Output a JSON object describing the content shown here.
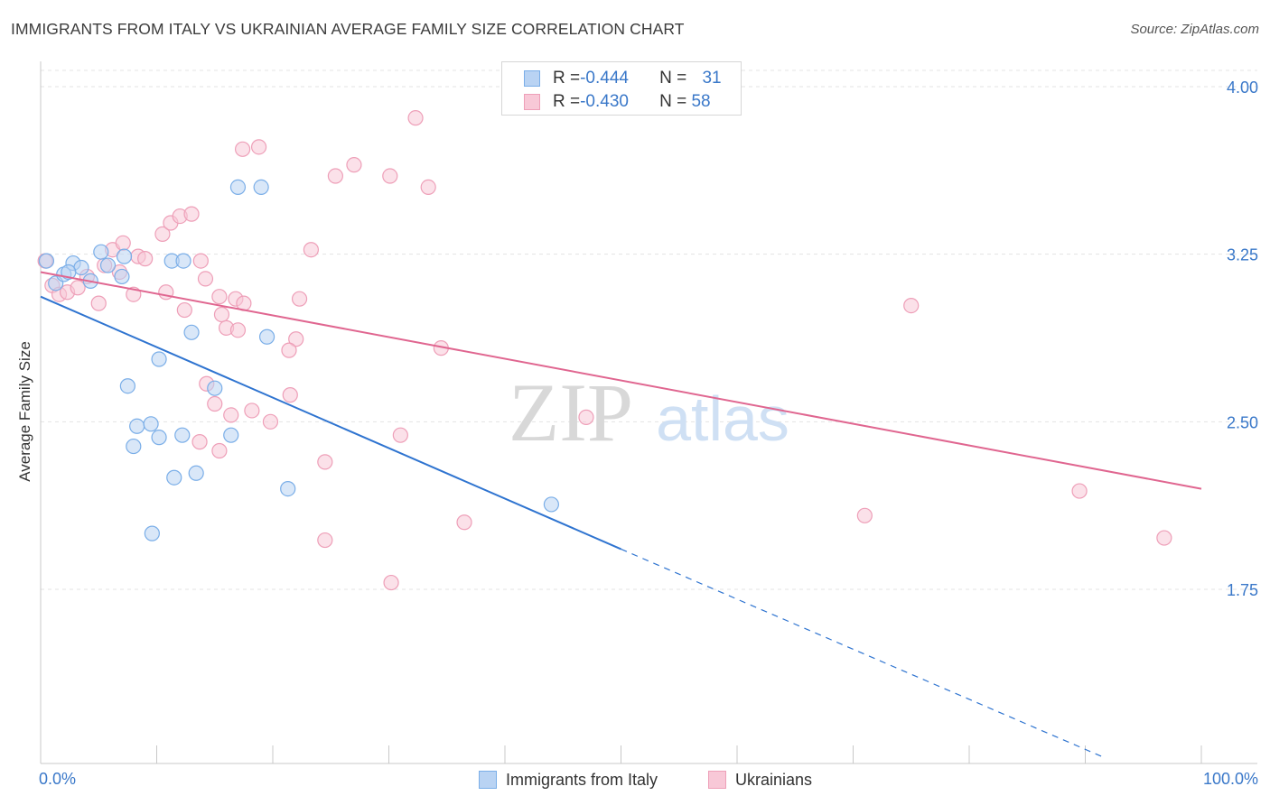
{
  "title": "IMMIGRANTS FROM ITALY VS UKRAINIAN AVERAGE FAMILY SIZE CORRELATION CHART",
  "source": "Source: ZipAtlas.com",
  "watermark": {
    "zip": "ZIP",
    "atlas": "atlas"
  },
  "legend": {
    "rows": [
      {
        "r_label": "R = ",
        "r_value": "-0.444",
        "n_label": "N = ",
        "n_value": "31"
      },
      {
        "r_label": "R = ",
        "r_value": "-0.430",
        "n_label": "N = ",
        "n_value": "58"
      }
    ]
  },
  "chart_data": {
    "type": "scatter",
    "title": "IMMIGRANTS FROM ITALY VS UKRAINIAN AVERAGE FAMILY SIZE CORRELATION CHART",
    "xlabel": "",
    "ylabel": "Average Family Size",
    "xlim": [
      0,
      100
    ],
    "ylim": [
      1.0,
      4.2
    ],
    "x_tick_labels": [
      "0.0%",
      "100.0%"
    ],
    "y_ticks": [
      1.75,
      2.5,
      3.25,
      4.0
    ],
    "y_tick_labels": [
      "1.75",
      "2.50",
      "3.25",
      "4.00"
    ],
    "grid": true,
    "legend_position": "bottom",
    "series": [
      {
        "name": "Immigrants from Italy",
        "color": "#7aaee8",
        "fill": "#b9d3f3",
        "trend_color": "#2f74d0",
        "trend": {
          "x0": 0,
          "y0": 3.06,
          "x1": 50,
          "y1": 1.93,
          "dash_to_x": 91.5,
          "dash_to_y": 1.0
        },
        "points": [
          [
            0.5,
            3.22
          ],
          [
            1.3,
            3.12
          ],
          [
            2.0,
            3.16
          ],
          [
            2.8,
            3.21
          ],
          [
            3.5,
            3.19
          ],
          [
            2.4,
            3.17
          ],
          [
            5.2,
            3.26
          ],
          [
            5.8,
            3.2
          ],
          [
            7.2,
            3.24
          ],
          [
            4.3,
            3.13
          ],
          [
            7.0,
            3.15
          ],
          [
            11.3,
            3.22
          ],
          [
            12.3,
            3.22
          ],
          [
            17.0,
            3.55
          ],
          [
            19.0,
            3.55
          ],
          [
            10.2,
            2.78
          ],
          [
            13.0,
            2.9
          ],
          [
            19.5,
            2.88
          ],
          [
            7.5,
            2.66
          ],
          [
            15.0,
            2.65
          ],
          [
            8.3,
            2.48
          ],
          [
            10.2,
            2.43
          ],
          [
            12.2,
            2.44
          ],
          [
            8.0,
            2.39
          ],
          [
            9.5,
            2.49
          ],
          [
            11.5,
            2.25
          ],
          [
            13.4,
            2.27
          ],
          [
            21.3,
            2.2
          ],
          [
            16.4,
            2.44
          ],
          [
            9.6,
            2.0
          ],
          [
            44.0,
            2.13
          ]
        ]
      },
      {
        "name": "Ukrainians",
        "color": "#ee9fb8",
        "fill": "#f8c8d7",
        "trend_color": "#e06690",
        "trend": {
          "x0": 0,
          "y0": 3.17,
          "x1": 100,
          "y1": 2.2
        },
        "points": [
          [
            0.4,
            3.22
          ],
          [
            1.0,
            3.11
          ],
          [
            1.6,
            3.07
          ],
          [
            2.3,
            3.08
          ],
          [
            3.2,
            3.1
          ],
          [
            4.0,
            3.15
          ],
          [
            5.5,
            3.2
          ],
          [
            6.2,
            3.27
          ],
          [
            7.1,
            3.3
          ],
          [
            8.4,
            3.24
          ],
          [
            9.0,
            3.23
          ],
          [
            10.5,
            3.34
          ],
          [
            11.2,
            3.39
          ],
          [
            12.0,
            3.42
          ],
          [
            13.0,
            3.43
          ],
          [
            14.2,
            3.14
          ],
          [
            5.0,
            3.03
          ],
          [
            8.0,
            3.07
          ],
          [
            10.8,
            3.08
          ],
          [
            12.4,
            3.0
          ],
          [
            15.6,
            2.98
          ],
          [
            16.8,
            3.05
          ],
          [
            17.5,
            3.03
          ],
          [
            16.0,
            2.92
          ],
          [
            17.0,
            2.91
          ],
          [
            18.8,
            3.73
          ],
          [
            17.4,
            3.72
          ],
          [
            22.3,
            3.05
          ],
          [
            23.3,
            3.27
          ],
          [
            25.4,
            3.6
          ],
          [
            27.0,
            3.65
          ],
          [
            30.1,
            3.6
          ],
          [
            32.3,
            3.86
          ],
          [
            33.4,
            3.55
          ],
          [
            22.0,
            2.87
          ],
          [
            21.4,
            2.82
          ],
          [
            14.3,
            2.67
          ],
          [
            15.0,
            2.58
          ],
          [
            18.2,
            2.55
          ],
          [
            16.4,
            2.53
          ],
          [
            13.7,
            2.41
          ],
          [
            15.4,
            2.37
          ],
          [
            19.8,
            2.5
          ],
          [
            21.5,
            2.62
          ],
          [
            24.5,
            2.32
          ],
          [
            31.0,
            2.44
          ],
          [
            34.5,
            2.83
          ],
          [
            36.5,
            2.05
          ],
          [
            24.5,
            1.97
          ],
          [
            30.2,
            1.78
          ],
          [
            47.0,
            2.52
          ],
          [
            71.0,
            2.08
          ],
          [
            75.0,
            3.02
          ],
          [
            89.5,
            2.19
          ],
          [
            96.8,
            1.98
          ],
          [
            15.4,
            3.06
          ],
          [
            6.8,
            3.17
          ],
          [
            13.8,
            3.22
          ]
        ]
      }
    ]
  }
}
